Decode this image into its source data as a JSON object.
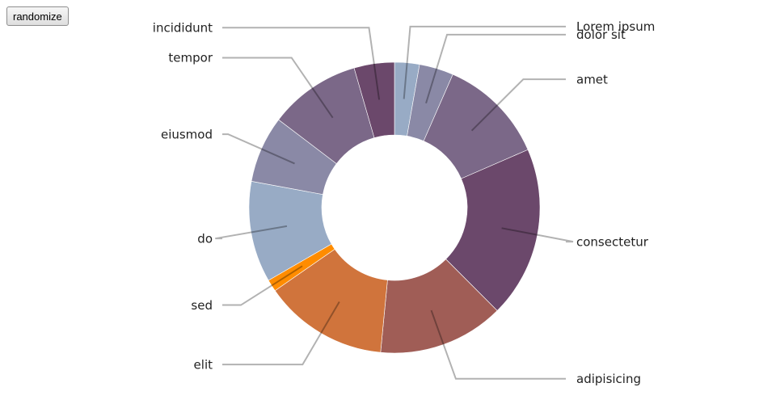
{
  "controls": {
    "randomize_label": "randomize"
  },
  "chart_data": {
    "type": "pie",
    "donut": true,
    "title": "",
    "start": "top, clockwise",
    "slices": [
      {
        "label": "Lorem ipsum",
        "value": 2.9,
        "color": "#98abc5"
      },
      {
        "label": "dolor sit",
        "value": 4.0,
        "color": "#8a89a6"
      },
      {
        "label": "amet",
        "value": 12.5,
        "color": "#7b6888"
      },
      {
        "label": "consectetur",
        "value": 20.0,
        "color": "#6b486b"
      },
      {
        "label": "adipisicing",
        "value": 14.7,
        "color": "#a05d56"
      },
      {
        "label": "elit",
        "value": 14.5,
        "color": "#d0743c"
      },
      {
        "label": "sed",
        "value": 1.4,
        "color": "#ff8c00"
      },
      {
        "label": "do",
        "value": 11.8,
        "color": "#98abc5"
      },
      {
        "label": "eiusmod",
        "value": 7.8,
        "color": "#8a89a6"
      },
      {
        "label": "tempor",
        "value": 10.7,
        "color": "#7b6888"
      },
      {
        "label": "incididunt",
        "value": 4.7,
        "color": "#6b486b"
      }
    ]
  }
}
